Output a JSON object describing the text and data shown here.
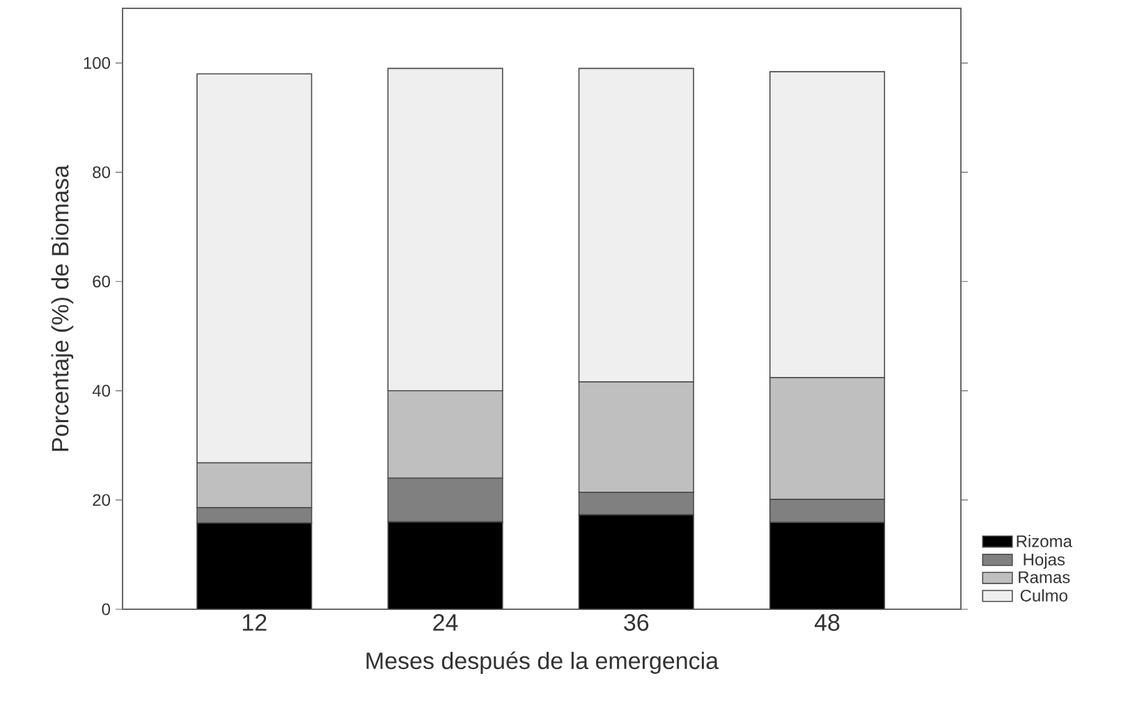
{
  "chart_data": {
    "type": "bar",
    "stacked": true,
    "xlabel": "Meses después de la emergencia",
    "ylabel": "Porcentaje (%) de Biomasa",
    "categories": [
      "12",
      "24",
      "36",
      "48"
    ],
    "series": [
      {
        "name": "Rizoma",
        "color": "#000000",
        "values": [
          15.8,
          16,
          17.3,
          15.9
        ]
      },
      {
        "name": "Hojas",
        "color": "#808080",
        "values": [
          2.8,
          8,
          4.1,
          4.2
        ]
      },
      {
        "name": "Ramas",
        "color": "#bfbfbf",
        "values": [
          8.2,
          16,
          20.2,
          22.3
        ]
      },
      {
        "name": "Culmo",
        "color": "#efefef",
        "values": [
          71.2,
          59,
          57.4,
          56
        ]
      }
    ],
    "ylim": [
      0,
      110
    ],
    "yticks": [
      0,
      20,
      40,
      60,
      80,
      100
    ],
    "grid": false,
    "legend": "bottom right"
  }
}
